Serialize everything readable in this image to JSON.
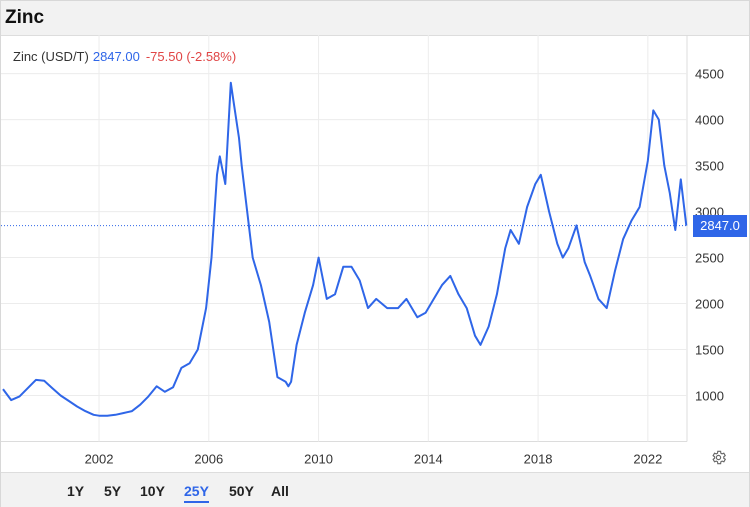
{
  "title": "Zinc",
  "legend": {
    "name": "Zinc (USD/T)",
    "price": "2847.00",
    "change": "-75.50 (-2.58%)"
  },
  "price_tag": "2847.0",
  "ranges": [
    {
      "label": "1Y",
      "active": false
    },
    {
      "label": "5Y",
      "active": false
    },
    {
      "label": "10Y",
      "active": false
    },
    {
      "label": "25Y",
      "active": true
    },
    {
      "label": "50Y",
      "active": false
    },
    {
      "label": "All",
      "active": false
    }
  ],
  "icons": {
    "settings": "gear-icon"
  },
  "colors": {
    "line": "#2f66e8",
    "change_negative": "#e04545",
    "accent": "#2f66e8"
  },
  "chart_data": {
    "type": "line",
    "title": "Zinc",
    "xlabel": "",
    "ylabel": "",
    "x_ticks": [
      "2002",
      "2006",
      "2010",
      "2014",
      "2018",
      "2022"
    ],
    "y_ticks": [
      1000,
      1500,
      2000,
      2500,
      3000,
      3500,
      4000,
      4500
    ],
    "xlim": [
      1998.5,
      2023.5
    ],
    "ylim": [
      500,
      4900
    ],
    "grid": true,
    "last_value": 2847.0,
    "series": [
      {
        "name": "Zinc (USD/T)",
        "x": [
          1998.5,
          1998.8,
          1999.1,
          1999.4,
          1999.7,
          2000.0,
          2000.3,
          2000.6,
          2000.9,
          2001.2,
          2001.5,
          2001.8,
          2002.0,
          2002.3,
          2002.6,
          2002.9,
          2003.2,
          2003.5,
          2003.8,
          2004.1,
          2004.4,
          2004.7,
          2005.0,
          2005.3,
          2005.6,
          2005.9,
          2006.1,
          2006.3,
          2006.4,
          2006.6,
          2006.8,
          2006.9,
          2007.1,
          2007.2,
          2007.4,
          2007.6,
          2007.9,
          2008.2,
          2008.5,
          2008.8,
          2008.9,
          2009.0,
          2009.2,
          2009.5,
          2009.8,
          2010.0,
          2010.3,
          2010.6,
          2010.9,
          2011.2,
          2011.5,
          2011.8,
          2012.1,
          2012.5,
          2012.9,
          2013.2,
          2013.6,
          2013.9,
          2014.2,
          2014.5,
          2014.8,
          2015.1,
          2015.4,
          2015.7,
          2015.9,
          2016.2,
          2016.5,
          2016.8,
          2017.0,
          2017.3,
          2017.6,
          2017.9,
          2018.1,
          2018.4,
          2018.7,
          2018.9,
          2019.1,
          2019.4,
          2019.7,
          2019.9,
          2020.2,
          2020.5,
          2020.8,
          2021.1,
          2021.4,
          2021.7,
          2022.0,
          2022.2,
          2022.4,
          2022.6,
          2022.8,
          2022.9,
          2023.0,
          2023.2,
          2023.4
        ],
        "values": [
          1070,
          950,
          990,
          1080,
          1170,
          1160,
          1080,
          1000,
          940,
          880,
          830,
          790,
          780,
          780,
          790,
          810,
          830,
          900,
          990,
          1100,
          1040,
          1090,
          1300,
          1350,
          1500,
          1950,
          2500,
          3400,
          3600,
          3300,
          4400,
          4200,
          3800,
          3500,
          3000,
          2500,
          2200,
          1800,
          1200,
          1150,
          1100,
          1150,
          1550,
          1900,
          2200,
          2500,
          2050,
          2100,
          2400,
          2400,
          2250,
          1950,
          2050,
          1950,
          1950,
          2050,
          1850,
          1900,
          2050,
          2200,
          2300,
          2100,
          1950,
          1650,
          1550,
          1750,
          2100,
          2600,
          2800,
          2650,
          3050,
          3300,
          3400,
          3000,
          2650,
          2500,
          2600,
          2850,
          2450,
          2300,
          2050,
          1950,
          2350,
          2700,
          2900,
          3050,
          3550,
          4100,
          4000,
          3500,
          3200,
          3000,
          2800,
          3350,
          2847
        ]
      }
    ]
  }
}
